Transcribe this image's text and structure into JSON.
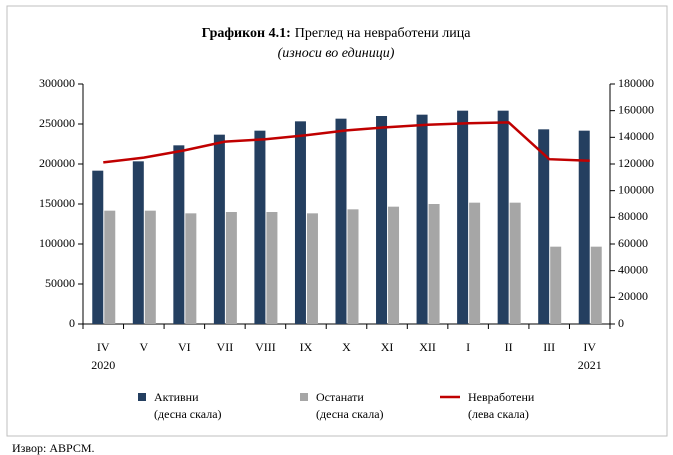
{
  "chart_data": {
    "type": "bar-line",
    "title_bold": "Графикон 4.1:",
    "title": "Преглед на невработени лица",
    "subtitle": "(износи во единици)",
    "categories": [
      "IV",
      "V",
      "VI",
      "VII",
      "VIII",
      "IX",
      "X",
      "XI",
      "XII",
      "I",
      "II",
      "III",
      "IV"
    ],
    "category_years": [
      "2020",
      null,
      null,
      null,
      null,
      null,
      null,
      null,
      null,
      null,
      null,
      null,
      "2021"
    ],
    "series": [
      {
        "name": "Активни",
        "scale_label": "(десна скала)",
        "color": "#243f60",
        "axis": "y2",
        "kind": "bar",
        "values": [
          115000,
          122000,
          134000,
          142000,
          145000,
          152000,
          154000,
          156000,
          157000,
          160000,
          160000,
          146000,
          145000
        ]
      },
      {
        "name": "Останати",
        "scale_label": "(десна скала)",
        "color": "#a6a6a6",
        "axis": "y2",
        "kind": "bar",
        "values": [
          85000,
          85000,
          83000,
          84000,
          84000,
          83000,
          86000,
          88000,
          90000,
          91000,
          91000,
          58000,
          58000
        ]
      },
      {
        "name": "Невработени",
        "scale_label": "(лева скала)",
        "color": "#c00000",
        "axis": "y",
        "kind": "line",
        "values": [
          202000,
          208000,
          217000,
          228000,
          231000,
          236000,
          242000,
          246000,
          249000,
          251000,
          252000,
          206000,
          204000
        ]
      }
    ],
    "ylim": [
      0,
      300000
    ],
    "yticks": [
      0,
      50000,
      100000,
      150000,
      200000,
      250000,
      300000
    ],
    "y2lim": [
      0,
      180000
    ],
    "y2ticks": [
      0,
      20000,
      40000,
      60000,
      80000,
      100000,
      120000,
      140000,
      160000,
      180000
    ],
    "source": "Извор: АВРСМ."
  }
}
